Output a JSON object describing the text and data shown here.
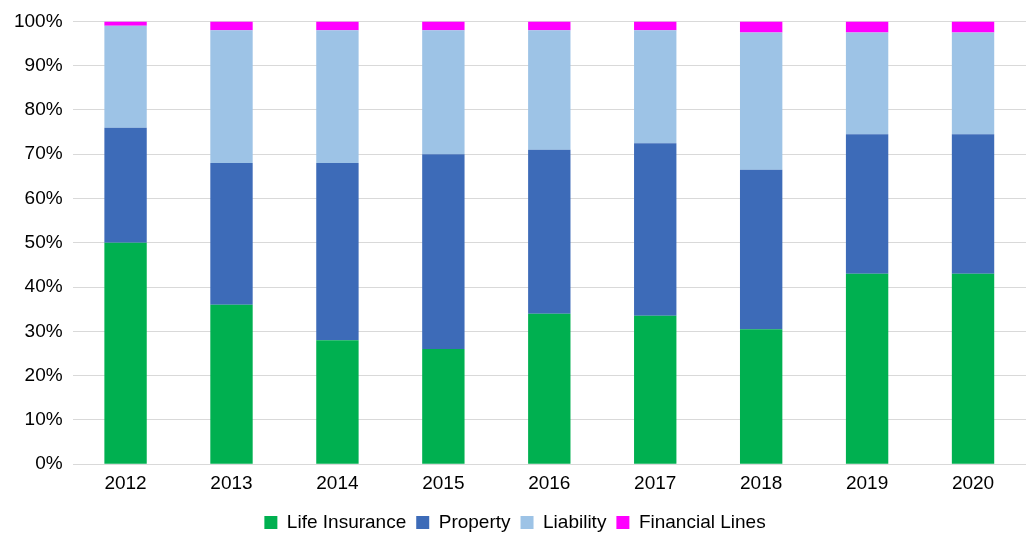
{
  "chart_data": {
    "type": "bar",
    "stacked": true,
    "categories": [
      "2012",
      "2013",
      "2014",
      "2015",
      "2016",
      "2017",
      "2018",
      "2019",
      "2020"
    ],
    "series": [
      {
        "name": "Life Insurance",
        "color": "#00b050",
        "values": [
          50,
          36,
          28,
          26,
          34,
          33.5,
          30.5,
          43,
          43
        ]
      },
      {
        "name": "Property",
        "color": "#3d6bb8",
        "values": [
          26,
          32,
          40,
          44,
          37,
          39,
          36,
          31.5,
          31.5
        ]
      },
      {
        "name": "Liability",
        "color": "#9dc3e6",
        "values": [
          23,
          30,
          30,
          28,
          27,
          25.5,
          31,
          23,
          23
        ]
      },
      {
        "name": "Financial Lines",
        "color": "#ff00ff",
        "values": [
          1,
          2,
          2,
          2,
          2,
          2,
          2.5,
          2.5,
          2.5
        ]
      }
    ],
    "ylim": [
      0,
      100
    ],
    "yticks": [
      {
        "value": 0,
        "label": "0%"
      },
      {
        "value": 10,
        "label": "10%"
      },
      {
        "value": 20,
        "label": "20%"
      },
      {
        "value": 30,
        "label": "30%"
      },
      {
        "value": 40,
        "label": "40%"
      },
      {
        "value": 50,
        "label": "50%"
      },
      {
        "value": 60,
        "label": "60%"
      },
      {
        "value": 70,
        "label": "70%"
      },
      {
        "value": 80,
        "label": "80%"
      },
      {
        "value": 90,
        "label": "90%"
      },
      {
        "value": 100,
        "label": "100%"
      }
    ],
    "grid": "y",
    "legend": "bottom"
  }
}
